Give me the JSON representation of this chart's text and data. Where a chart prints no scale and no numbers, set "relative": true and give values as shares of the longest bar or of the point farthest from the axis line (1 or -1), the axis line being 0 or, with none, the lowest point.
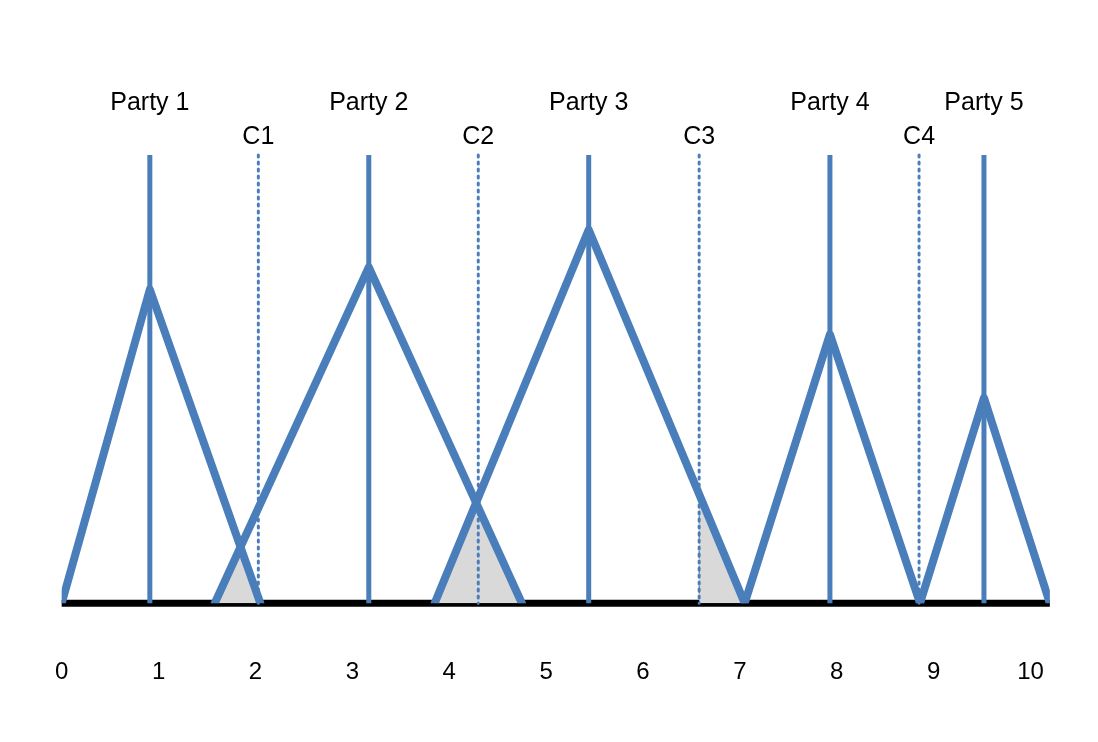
{
  "chart_data": {
    "type": "line",
    "relative": true,
    "marker": "none",
    "line_style": "solid",
    "grid": false,
    "legend": false,
    "tick_labels": "x",
    "xlim": [
      0,
      10.2
    ],
    "xticks": [
      0,
      1,
      2,
      3,
      4,
      5,
      6,
      7,
      8,
      9,
      10
    ],
    "series": [
      {
        "type": "area",
        "color": "#d9d9d9",
        "x": [
          1.58,
          1.83,
          2.05
        ],
        "values": [
          0,
          0.13,
          0
        ]
      },
      {
        "type": "area",
        "color": "#d9d9d9",
        "x": [
          3.85,
          4.3,
          4.75
        ],
        "values": [
          0,
          0.27,
          0
        ]
      },
      {
        "type": "area",
        "color": "#d9d9d9",
        "x": [
          6.58,
          6.58,
          7.05
        ],
        "values": [
          0,
          0.31,
          0
        ]
      },
      {
        "color": "#4a7ebb",
        "x": [
          0,
          0.91,
          2.05
        ],
        "values": [
          0,
          0.84,
          0
        ]
      },
      {
        "color": "#4a7ebb",
        "x": [
          1.58,
          3.17,
          4.75
        ],
        "values": [
          0,
          0.9,
          0
        ]
      },
      {
        "color": "#4a7ebb",
        "x": [
          3.85,
          5.44,
          7.05
        ],
        "values": [
          0,
          1,
          0
        ]
      },
      {
        "color": "#4a7ebb",
        "x": [
          7.05,
          7.93,
          8.86
        ],
        "values": [
          0,
          0.72,
          0
        ]
      },
      {
        "color": "#4a7ebb",
        "x": [
          8.86,
          9.52,
          10.2
        ],
        "values": [
          0,
          0.55,
          0
        ]
      }
    ],
    "ref_lines": [
      {
        "axis": "x",
        "value": 0.91,
        "label": "Party 1",
        "color": "#4a7ebb",
        "line_style": "solid"
      },
      {
        "axis": "x",
        "value": 3.17,
        "label": "Party 2",
        "color": "#4a7ebb",
        "line_style": "solid"
      },
      {
        "axis": "x",
        "value": 5.44,
        "label": "Party 3",
        "color": "#4a7ebb",
        "line_style": "solid"
      },
      {
        "axis": "x",
        "value": 7.93,
        "label": "Party 4",
        "color": "#4a7ebb",
        "line_style": "solid"
      },
      {
        "axis": "x",
        "value": 9.52,
        "label": "Party 5",
        "color": "#4a7ebb",
        "line_style": "solid"
      },
      {
        "axis": "x",
        "value": 2.03,
        "label": "C1",
        "color": "#4a7ebb",
        "line_style": "dotted"
      },
      {
        "axis": "x",
        "value": 4.3,
        "label": "C2",
        "color": "#4a7ebb",
        "line_style": "dotted"
      },
      {
        "axis": "x",
        "value": 6.58,
        "label": "C3",
        "color": "#4a7ebb",
        "line_style": "dotted"
      },
      {
        "axis": "x",
        "value": 8.85,
        "label": "C4",
        "color": "#4a7ebb",
        "line_style": "dotted"
      }
    ]
  }
}
